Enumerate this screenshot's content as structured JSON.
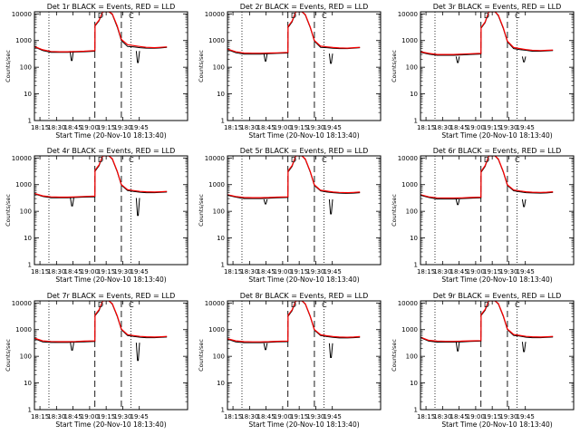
{
  "figure": {
    "panel_titles": [
      "Det 1r BLACK = Events, RED = LLD",
      "Det 2r BLACK = Events, RED = LLD",
      "Det 3r BLACK = Events, RED = LLD",
      "Det 4r BLACK = Events, RED = LLD",
      "Det 5r BLACK = Events, RED = LLD",
      "Det 6r BLACK = Events, RED = LLD",
      "Det 7r BLACK = Events, RED = LLD",
      "Det 8r BLACK = Events, RED = LLD",
      "Det 9r BLACK = Events, RED = LLD"
    ],
    "xlabel": "Start Time (20-Nov-10 18:13:40)",
    "ylabel": "Counts/sec",
    "x_tick_labels": [
      "18:15",
      "18:30",
      "18:45",
      "19:00",
      "19:15",
      "19:30",
      "19:45"
    ],
    "y_tick_labels": [
      "1",
      "10",
      "100",
      "1000",
      "10000"
    ],
    "colors": {
      "events": "#000000",
      "lld": "#ff0000"
    }
  },
  "chart_data": {
    "type": "line",
    "layout": "3x3 grid of panels",
    "y_scale": "log",
    "ylim": [
      1,
      12000
    ],
    "xlim_minutes_after_18_13_40": [
      0,
      37
    ],
    "x_ticks_minutes": [
      1.33,
      5.33,
      9.33,
      13.33,
      17.33,
      21.33,
      25.33
    ],
    "dotted_vertical_lines_minutes": [
      3.5,
      23.3
    ],
    "dashed_vertical_lines_minutes": [
      14.6,
      21.0
    ],
    "annotations": [
      "D",
      "C"
    ],
    "series_legend": {
      "BLACK": "Events",
      "RED": "LLD"
    },
    "panels": [
      {
        "detector": "1r",
        "x": [
          0,
          2,
          4,
          6,
          8,
          10,
          12,
          14.6,
          14.65,
          15.6,
          16.5,
          18,
          18.8,
          20,
          21,
          22.5,
          24,
          25.5,
          27,
          29,
          30.5,
          32
        ],
        "lld": [
          600,
          450,
          390,
          380,
          380,
          390,
          400,
          420,
          3800,
          5800,
          14000,
          14000,
          10000,
          3500,
          1100,
          700,
          650,
          600,
          560,
          540,
          560,
          580
        ],
        "events": [
          580,
          420,
          360,
          360,
          360,
          370,
          380,
          400,
          3500,
          5500,
          13000,
          13000,
          9500,
          3200,
          1000,
          600,
          580,
          540,
          520,
          510,
          530,
          560
        ],
        "event_dips": [
          {
            "x": 9.0,
            "y": 180
          },
          {
            "x": 25.0,
            "y": 150
          }
        ]
      },
      {
        "detector": "2r",
        "x": [
          0,
          2,
          4,
          6,
          8,
          10,
          12,
          14.6,
          14.65,
          15.6,
          16.5,
          18,
          18.8,
          20,
          21,
          22.5,
          24,
          25.5,
          27,
          29,
          30.5,
          32
        ],
        "lld": [
          480,
          380,
          340,
          335,
          335,
          340,
          345,
          360,
          3400,
          5400,
          14000,
          14000,
          9500,
          3200,
          1000,
          620,
          580,
          550,
          530,
          520,
          540,
          560
        ],
        "events": [
          460,
          350,
          310,
          310,
          310,
          320,
          330,
          340,
          3100,
          5000,
          13000,
          13000,
          9000,
          3000,
          950,
          560,
          540,
          510,
          500,
          500,
          520,
          540
        ],
        "event_dips": [
          {
            "x": 9.2,
            "y": 170
          },
          {
            "x": 25.0,
            "y": 140
          }
        ]
      },
      {
        "detector": "3r",
        "x": [
          0,
          2,
          4,
          6,
          8,
          10,
          12,
          14.6,
          14.65,
          15.6,
          16.5,
          18,
          18.8,
          20,
          21,
          22.5,
          24,
          25.5,
          27,
          29,
          30.5,
          32
        ],
        "lld": [
          380,
          330,
          300,
          300,
          300,
          310,
          320,
          330,
          3100,
          5000,
          14000,
          14000,
          9000,
          3000,
          950,
          550,
          500,
          460,
          430,
          420,
          430,
          440
        ],
        "events": [
          360,
          310,
          280,
          280,
          280,
          290,
          300,
          310,
          2900,
          4700,
          13000,
          13000,
          8500,
          2800,
          900,
          500,
          460,
          430,
          400,
          400,
          410,
          420
        ],
        "event_dips": [
          {
            "x": 9.0,
            "y": 150
          },
          {
            "x": 25.0,
            "y": 160
          }
        ]
      },
      {
        "detector": "4r",
        "x": [
          0,
          2,
          4,
          6,
          8,
          10,
          12,
          14.6,
          14.65,
          15.6,
          16.5,
          18,
          18.8,
          20,
          21,
          22.5,
          24,
          25.5,
          27,
          29,
          30.5,
          32
        ],
        "lld": [
          470,
          380,
          350,
          340,
          340,
          350,
          360,
          370,
          3500,
          5500,
          14000,
          14000,
          9500,
          3200,
          1000,
          650,
          600,
          560,
          540,
          530,
          540,
          560
        ],
        "events": [
          450,
          360,
          320,
          320,
          320,
          330,
          340,
          350,
          3200,
          5100,
          13000,
          13000,
          9000,
          3000,
          950,
          600,
          560,
          520,
          500,
          500,
          510,
          530
        ],
        "event_dips": [
          {
            "x": 9.1,
            "y": 160
          },
          {
            "x": 25.0,
            "y": 70
          }
        ]
      },
      {
        "detector": "5r",
        "x": [
          0,
          2,
          4,
          6,
          8,
          10,
          12,
          14.6,
          14.65,
          15.6,
          16.5,
          18,
          18.8,
          20,
          21,
          22.5,
          24,
          25.5,
          27,
          29,
          30.5,
          32
        ],
        "lld": [
          420,
          360,
          330,
          325,
          325,
          330,
          340,
          350,
          3300,
          5200,
          14000,
          14000,
          9200,
          3100,
          980,
          620,
          570,
          530,
          510,
          500,
          510,
          530
        ],
        "events": [
          400,
          340,
          300,
          300,
          300,
          310,
          320,
          330,
          3000,
          4800,
          13000,
          13000,
          8800,
          2900,
          930,
          580,
          530,
          500,
          480,
          470,
          480,
          500
        ],
        "event_dips": [
          {
            "x": 9.2,
            "y": 190
          },
          {
            "x": 25.0,
            "y": 80
          }
        ]
      },
      {
        "detector": "6r",
        "x": [
          0,
          2,
          4,
          6,
          8,
          10,
          12,
          14.6,
          14.65,
          15.6,
          16.5,
          18,
          18.8,
          20,
          21,
          22.5,
          24,
          25.5,
          27,
          29,
          30.5,
          32
        ],
        "lld": [
          420,
          350,
          320,
          315,
          315,
          320,
          330,
          340,
          3200,
          5200,
          14000,
          14000,
          9200,
          3100,
          980,
          630,
          580,
          540,
          520,
          510,
          520,
          540
        ],
        "events": [
          400,
          330,
          290,
          290,
          290,
          300,
          310,
          320,
          2900,
          4800,
          13000,
          13000,
          8800,
          2900,
          930,
          590,
          540,
          500,
          490,
          480,
          490,
          510
        ],
        "event_dips": [
          {
            "x": 9.0,
            "y": 180
          },
          {
            "x": 25.0,
            "y": 150
          }
        ]
      },
      {
        "detector": "7r",
        "x": [
          0,
          2,
          4,
          6,
          8,
          10,
          12,
          14.6,
          14.65,
          15.6,
          16.5,
          18,
          18.8,
          20,
          21,
          22.5,
          24,
          25.5,
          27,
          29,
          30.5,
          32
        ],
        "lld": [
          480,
          380,
          360,
          355,
          355,
          360,
          370,
          380,
          3600,
          5600,
          14000,
          14000,
          9500,
          3300,
          1050,
          650,
          600,
          560,
          540,
          530,
          540,
          560
        ],
        "events": [
          460,
          350,
          330,
          330,
          330,
          340,
          350,
          360,
          3300,
          5200,
          13000,
          13000,
          9000,
          3100,
          1000,
          600,
          560,
          520,
          500,
          500,
          510,
          530
        ],
        "event_dips": [
          {
            "x": 9.1,
            "y": 170
          },
          {
            "x": 25.0,
            "y": 70
          }
        ]
      },
      {
        "detector": "8r",
        "x": [
          0,
          2,
          4,
          6,
          8,
          10,
          12,
          14.6,
          14.65,
          15.6,
          16.5,
          18,
          18.8,
          20,
          21,
          22.5,
          24,
          25.5,
          27,
          29,
          30.5,
          32
        ],
        "lld": [
          460,
          380,
          355,
          350,
          350,
          355,
          365,
          375,
          3500,
          5500,
          14000,
          14000,
          9400,
          3200,
          1000,
          640,
          590,
          550,
          530,
          520,
          530,
          550
        ],
        "events": [
          440,
          350,
          325,
          325,
          325,
          335,
          345,
          355,
          3200,
          5100,
          13000,
          13000,
          9000,
          3000,
          950,
          600,
          550,
          510,
          490,
          490,
          500,
          520
        ],
        "event_dips": [
          {
            "x": 9.2,
            "y": 180
          },
          {
            "x": 25.0,
            "y": 90
          }
        ]
      },
      {
        "detector": "9r",
        "x": [
          0,
          2,
          4,
          6,
          8,
          10,
          12,
          14.6,
          14.65,
          15.6,
          16.5,
          18,
          18.8,
          20,
          21,
          22.5,
          24,
          25.5,
          27,
          29,
          30.5,
          32
        ],
        "lld": [
          520,
          400,
          370,
          365,
          365,
          370,
          380,
          390,
          3700,
          5700,
          14000,
          14000,
          9600,
          3300,
          1050,
          660,
          610,
          560,
          540,
          530,
          540,
          560
        ],
        "events": [
          500,
          370,
          340,
          340,
          340,
          350,
          360,
          370,
          3400,
          5300,
          13000,
          13000,
          9100,
          3100,
          1000,
          610,
          570,
          520,
          500,
          500,
          510,
          530
        ],
        "event_dips": [
          {
            "x": 9.0,
            "y": 160
          },
          {
            "x": 25.0,
            "y": 150
          }
        ]
      }
    ]
  }
}
